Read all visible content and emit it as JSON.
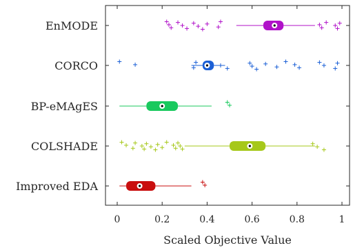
{
  "chart_data": {
    "type": "box",
    "orientation": "horizontal",
    "xlabel": "Scaled Objective Value",
    "xlim": [
      -0.04,
      1.04
    ],
    "xticks": [
      0,
      0.2,
      0.4,
      0.6,
      0.8,
      1
    ],
    "xtick_labels": [
      "0",
      "0.2",
      "0.4",
      "0.6",
      "0.8",
      "1"
    ],
    "grid": false,
    "series": [
      {
        "name": "EnMODE",
        "color": "#b012c9",
        "whisker_low": 0.53,
        "q1": 0.65,
        "median": 0.7,
        "q3": 0.74,
        "whisker_high": 0.88,
        "outliers": [
          0.22,
          0.23,
          0.24,
          0.27,
          0.29,
          0.31,
          0.34,
          0.36,
          0.38,
          0.4,
          0.45,
          0.46,
          0.9,
          0.91,
          0.93,
          0.97,
          0.98,
          0.99
        ]
      },
      {
        "name": "CORCO",
        "color": "#1a5fd6",
        "whisker_low": 0.33,
        "q1": 0.38,
        "median": 0.4,
        "q3": 0.43,
        "whisker_high": 0.48,
        "outliers": [
          0.01,
          0.08,
          0.34,
          0.35,
          0.46,
          0.49,
          0.59,
          0.6,
          0.62,
          0.66,
          0.71,
          0.75,
          0.79,
          0.81,
          0.9,
          0.92,
          0.97,
          0.98
        ]
      },
      {
        "name": "BP-eMAgES",
        "color": "#19c95e",
        "whisker_low": 0.01,
        "q1": 0.13,
        "median": 0.2,
        "q3": 0.27,
        "whisker_high": 0.42,
        "outliers": [
          0.49,
          0.5
        ]
      },
      {
        "name": "COLSHADE",
        "color": "#a6c81a",
        "whisker_low": 0.3,
        "q1": 0.5,
        "median": 0.59,
        "q3": 0.66,
        "whisker_high": 0.88,
        "outliers": [
          0.02,
          0.04,
          0.07,
          0.08,
          0.11,
          0.12,
          0.13,
          0.15,
          0.17,
          0.18,
          0.2,
          0.22,
          0.25,
          0.26,
          0.27,
          0.28,
          0.29,
          0.87,
          0.89,
          0.92
        ]
      },
      {
        "name": "Improved EDA",
        "color": "#c90e0e",
        "whisker_low": 0.01,
        "q1": 0.04,
        "median": 0.1,
        "q3": 0.17,
        "whisker_high": 0.33,
        "outliers": [
          0.38,
          0.39
        ]
      }
    ]
  }
}
